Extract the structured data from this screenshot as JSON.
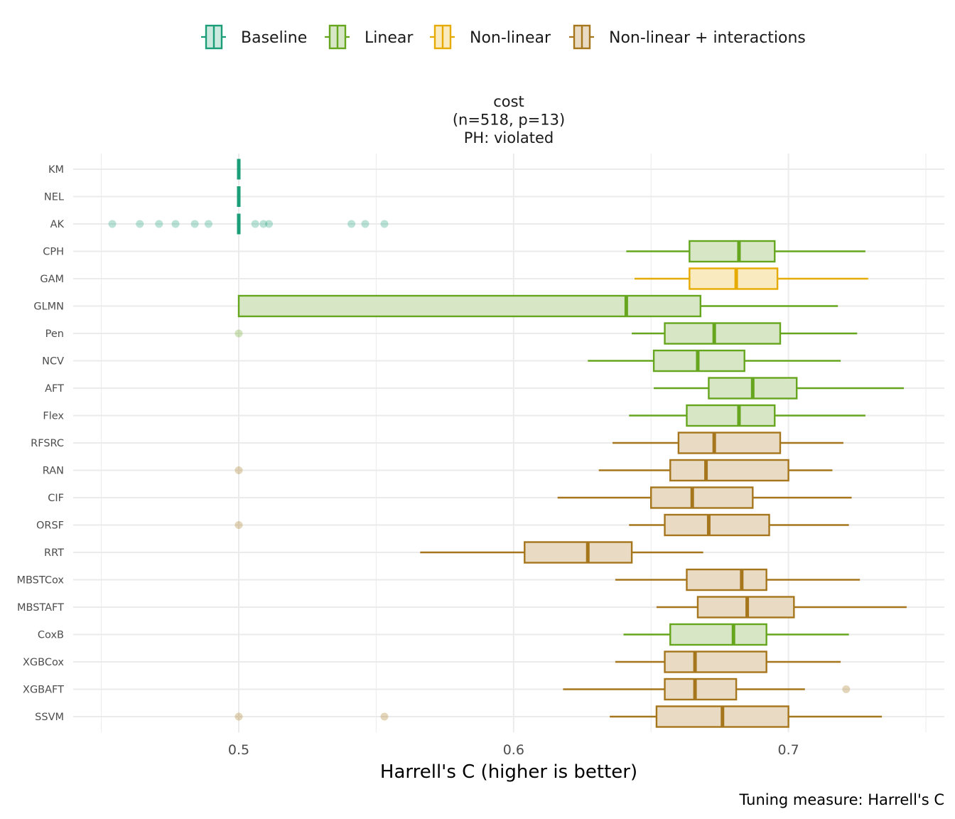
{
  "chart_data": {
    "type": "boxplot",
    "orientation": "horizontal",
    "title_lines": [
      "cost",
      "(n=518, p=13)",
      "PH: violated"
    ],
    "xlabel": "Harrell's C (higher is better)",
    "caption": "Tuning measure: Harrell's C",
    "xlim": [
      0.45,
      0.757
    ],
    "xticks": [
      0.5,
      0.6,
      0.7
    ],
    "xtick_labels": [
      "0.5",
      "0.6",
      "0.7"
    ],
    "grid": true,
    "legend_position": "top",
    "groups": [
      {
        "key": "baseline",
        "label": "Baseline",
        "color": "#1b9e77",
        "fill": "#cce9df"
      },
      {
        "key": "linear",
        "label": "Linear",
        "color": "#66a61e",
        "fill": "#d7e7c5"
      },
      {
        "key": "nonlinear",
        "label": "Non-linear",
        "color": "#e6ab02",
        "fill": "#faeac0"
      },
      {
        "key": "nli",
        "label": "Non-linear + interactions",
        "color": "#a6761d",
        "fill": "#e9dac3"
      }
    ],
    "boxes": [
      {
        "name": "KM",
        "group": "baseline",
        "min": 0.5,
        "q1": 0.5,
        "median": 0.5,
        "q3": 0.5,
        "max": 0.5,
        "outliers": []
      },
      {
        "name": "NEL",
        "group": "baseline",
        "min": 0.5,
        "q1": 0.5,
        "median": 0.5,
        "q3": 0.5,
        "max": 0.5,
        "outliers": []
      },
      {
        "name": "AK",
        "group": "baseline",
        "min": 0.5,
        "q1": 0.5,
        "median": 0.5,
        "q3": 0.5,
        "max": 0.5,
        "outliers": [
          0.454,
          0.464,
          0.471,
          0.477,
          0.484,
          0.489,
          0.506,
          0.509,
          0.511,
          0.541,
          0.546,
          0.553
        ]
      },
      {
        "name": "CPH",
        "group": "linear",
        "min": 0.641,
        "q1": 0.664,
        "median": 0.682,
        "q3": 0.695,
        "max": 0.728,
        "outliers": []
      },
      {
        "name": "GAM",
        "group": "nonlinear",
        "min": 0.644,
        "q1": 0.664,
        "median": 0.681,
        "q3": 0.696,
        "max": 0.729,
        "outliers": []
      },
      {
        "name": "GLMN",
        "group": "linear",
        "min": 0.5,
        "q1": 0.5,
        "median": 0.641,
        "q3": 0.668,
        "max": 0.718,
        "outliers": []
      },
      {
        "name": "Pen",
        "group": "linear",
        "min": 0.643,
        "q1": 0.655,
        "median": 0.673,
        "q3": 0.697,
        "max": 0.725,
        "outliers": [
          0.5
        ]
      },
      {
        "name": "NCV",
        "group": "linear",
        "min": 0.627,
        "q1": 0.651,
        "median": 0.667,
        "q3": 0.684,
        "max": 0.719,
        "outliers": []
      },
      {
        "name": "AFT",
        "group": "linear",
        "min": 0.651,
        "q1": 0.671,
        "median": 0.687,
        "q3": 0.703,
        "max": 0.742,
        "outliers": []
      },
      {
        "name": "Flex",
        "group": "linear",
        "min": 0.642,
        "q1": 0.663,
        "median": 0.682,
        "q3": 0.695,
        "max": 0.728,
        "outliers": []
      },
      {
        "name": "RFSRC",
        "group": "nli",
        "min": 0.636,
        "q1": 0.66,
        "median": 0.673,
        "q3": 0.697,
        "max": 0.72,
        "outliers": []
      },
      {
        "name": "RAN",
        "group": "nli",
        "min": 0.631,
        "q1": 0.657,
        "median": 0.67,
        "q3": 0.7,
        "max": 0.716,
        "outliers": [
          0.5
        ]
      },
      {
        "name": "CIF",
        "group": "nli",
        "min": 0.616,
        "q1": 0.65,
        "median": 0.665,
        "q3": 0.687,
        "max": 0.723,
        "outliers": []
      },
      {
        "name": "ORSF",
        "group": "nli",
        "min": 0.642,
        "q1": 0.655,
        "median": 0.671,
        "q3": 0.693,
        "max": 0.722,
        "outliers": [
          0.5
        ]
      },
      {
        "name": "RRT",
        "group": "nli",
        "min": 0.566,
        "q1": 0.604,
        "median": 0.627,
        "q3": 0.643,
        "max": 0.669,
        "outliers": []
      },
      {
        "name": "MBSTCox",
        "group": "nli",
        "min": 0.637,
        "q1": 0.663,
        "median": 0.683,
        "q3": 0.692,
        "max": 0.726,
        "outliers": []
      },
      {
        "name": "MBSTAFT",
        "group": "nli",
        "min": 0.652,
        "q1": 0.667,
        "median": 0.685,
        "q3": 0.702,
        "max": 0.743,
        "outliers": []
      },
      {
        "name": "CoxB",
        "group": "linear",
        "min": 0.64,
        "q1": 0.657,
        "median": 0.68,
        "q3": 0.692,
        "max": 0.722,
        "outliers": []
      },
      {
        "name": "XGBCox",
        "group": "nli",
        "min": 0.637,
        "q1": 0.655,
        "median": 0.666,
        "q3": 0.692,
        "max": 0.719,
        "outliers": []
      },
      {
        "name": "XGBAFT",
        "group": "nli",
        "min": 0.618,
        "q1": 0.655,
        "median": 0.666,
        "q3": 0.681,
        "max": 0.706,
        "outliers": [
          0.721
        ]
      },
      {
        "name": "SSVM",
        "group": "nli",
        "min": 0.635,
        "q1": 0.652,
        "median": 0.676,
        "q3": 0.7,
        "max": 0.734,
        "outliers": [
          0.5,
          0.553
        ]
      }
    ]
  }
}
